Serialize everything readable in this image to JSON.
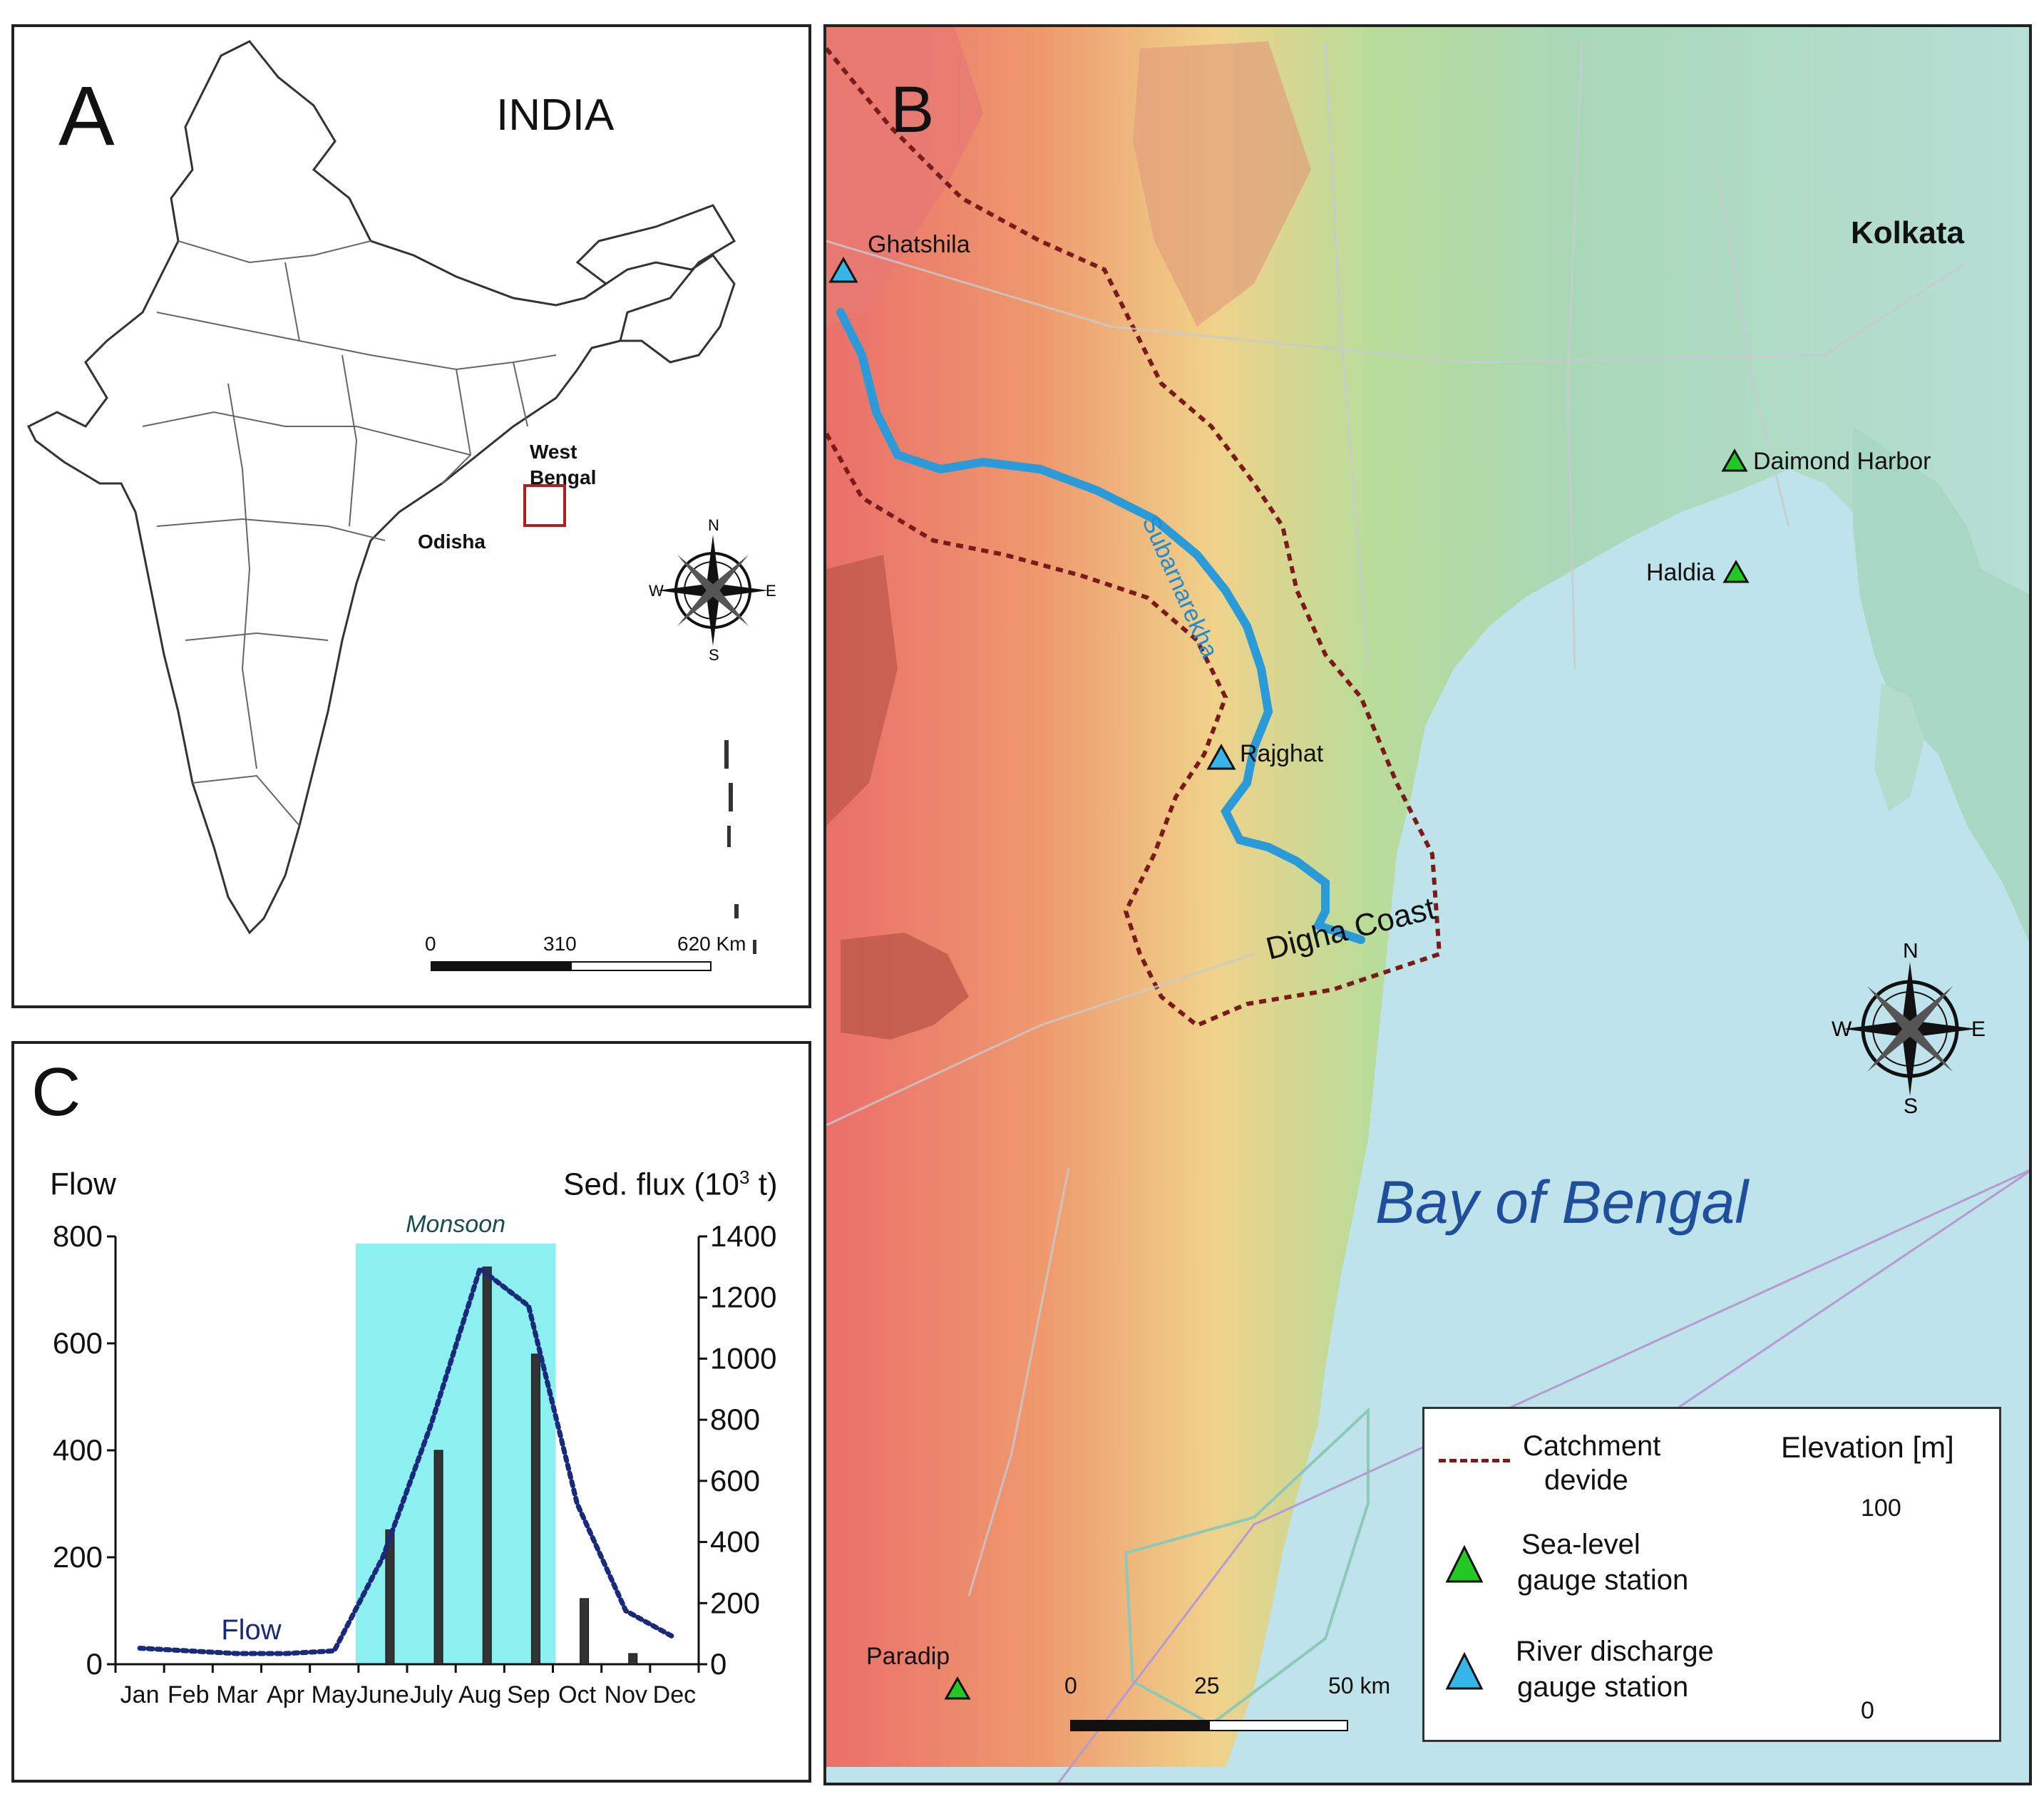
{
  "panel_a": {
    "label": "A",
    "country": "INDIA",
    "state_label_1": "West",
    "state_label_2": "Bengal",
    "state_odisha": "Odisha",
    "compass": {
      "n": "N",
      "s": "S",
      "e": "E",
      "w": "W"
    },
    "scale": {
      "t0": "0",
      "t1": "310",
      "t2": "620 Km"
    }
  },
  "panel_b": {
    "label": "B",
    "places": {
      "ghatshila": "Ghatshila",
      "kolkata": "Kolkata",
      "daimond_harbor": "Daimond Harbor",
      "haldia": "Haldia",
      "rajghat": "Rajghat",
      "paradip": "Paradip"
    },
    "river": "Subarnarekha",
    "coast": "Digha Coast",
    "sea": "Bay of Bengal",
    "compass": {
      "n": "N",
      "s": "S",
      "e": "E",
      "w": "W"
    },
    "scale": {
      "t0": "0",
      "t1": "25",
      "t2": "50 km"
    },
    "legend": {
      "catchment_1": "Catchment",
      "catchment_2": "devide",
      "sea_level_1": "Sea-level",
      "sea_level_2": "gauge station",
      "river_1": "River discharge",
      "river_2": "gauge station",
      "elevation_title": "Elevation [m]",
      "elev_max": "100",
      "elev_min": "0"
    },
    "colors": {
      "sea": "#bfe3ea",
      "river": "#2a9ad8",
      "divide": "#7a1a1a",
      "sea_gauge": "#22c922",
      "river_gauge": "#36b5e8",
      "high_elev": "#e87a72"
    }
  },
  "panel_c": {
    "label": "C",
    "chart_data": {
      "type": "bar",
      "title": "",
      "left_axis_label": "Flow",
      "right_axis_label_main": "Sed. flux (10",
      "right_axis_label_sup": "3",
      "right_axis_label_end": " t)",
      "monsoon_label": "Monsoon",
      "flow_annotation": "Flow",
      "categories": [
        "Jan",
        "Feb",
        "Mar",
        "Apr",
        "May",
        "June",
        "July",
        "Aug",
        "Sep",
        "Oct",
        "Nov",
        "Dec"
      ],
      "left_ylim": [
        0,
        800
      ],
      "left_ticks": [
        "0",
        "200",
        "400",
        "600",
        "800"
      ],
      "right_ylim": [
        0,
        1400
      ],
      "right_ticks": [
        "0",
        "200",
        "400",
        "600",
        "800",
        "1000",
        "1200",
        "1400"
      ],
      "monsoon_months": [
        "June",
        "July",
        "Aug",
        "Sep"
      ],
      "series": [
        {
          "name": "Flow",
          "kind": "line",
          "axis": "left",
          "values": [
            30,
            25,
            20,
            20,
            25,
            200,
            450,
            740,
            670,
            300,
            100,
            50
          ]
        },
        {
          "kind": "bar",
          "axis": "right",
          "values": [
            0,
            0,
            0,
            0,
            0,
            440,
            700,
            1300,
            1015,
            215,
            35,
            0
          ]
        }
      ],
      "colors": {
        "flow": "#1a2a7a",
        "bars": "#333333",
        "monsoon": "#8cf0f0"
      }
    }
  }
}
